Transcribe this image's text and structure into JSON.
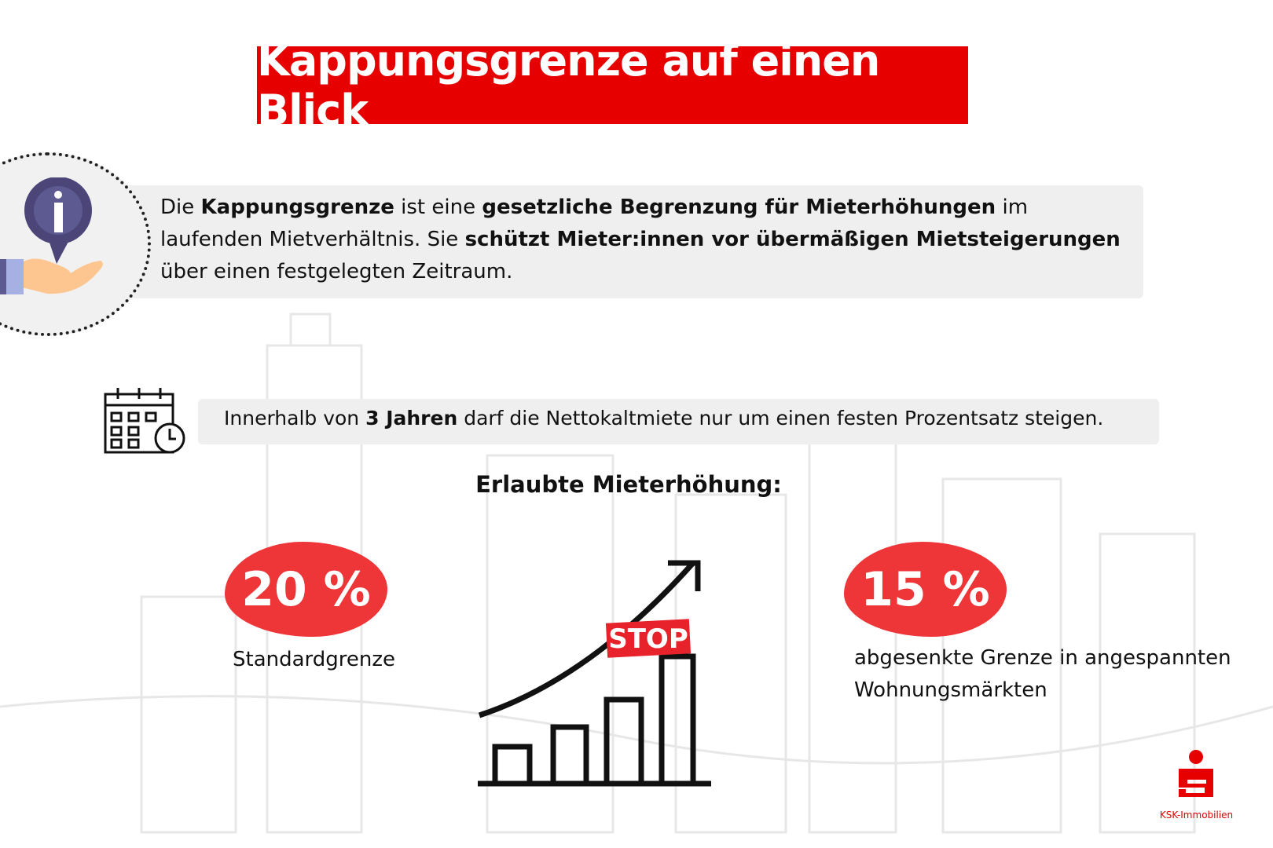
{
  "title": "Kappungsgrenze auf einen Blick",
  "intro": {
    "t1": "Die ",
    "b1": "Kappungsgrenze",
    "t2": " ist eine ",
    "b2": "gesetzliche Begrenzung für Mieterhöhungen",
    "t3": " im laufenden Mietverhältnis. Sie ",
    "b3": "schützt Mieter:innen vor übermäßigen Mietsteigerungen",
    "t4": " über einen festgelegten Zeitraum."
  },
  "period": {
    "t1": "Innerhalb von ",
    "b1": "3 Jahren",
    "t2": " darf die Nettokaltmiete nur um einen festen Prozentsatz steigen."
  },
  "subtitle": "Erlaubte Mieterhöhung:",
  "standard": {
    "value": "20 %",
    "label": "Standardgrenze"
  },
  "reduced": {
    "value": "15 %",
    "label": "abgesenkte Grenze in angespannten Wohnungsmärkten"
  },
  "stop_label": "STOP",
  "logo_text": "KSK-Immobilien",
  "colors": {
    "accent": "#e60000",
    "blob": "#ee3538"
  }
}
